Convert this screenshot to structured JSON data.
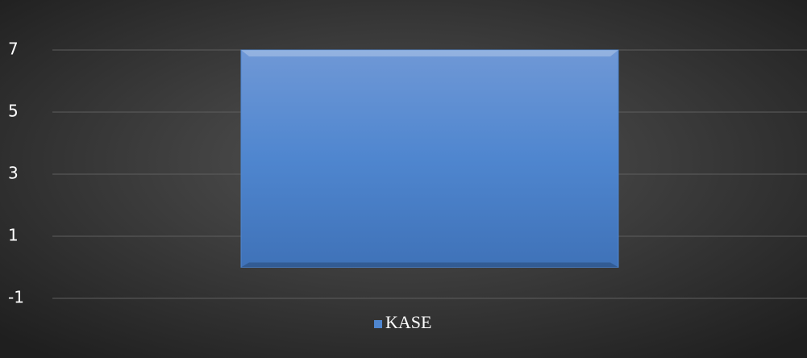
{
  "chart_data": {
    "type": "bar",
    "categories": [
      null
    ],
    "series": [
      {
        "name": "KASE",
        "color": "#4f86cf",
        "values": [
          7
        ]
      }
    ],
    "ylim": [
      -1,
      7
    ],
    "yticks": [
      -1,
      1,
      3,
      5,
      7
    ],
    "grid": true,
    "legend": "bottom"
  }
}
